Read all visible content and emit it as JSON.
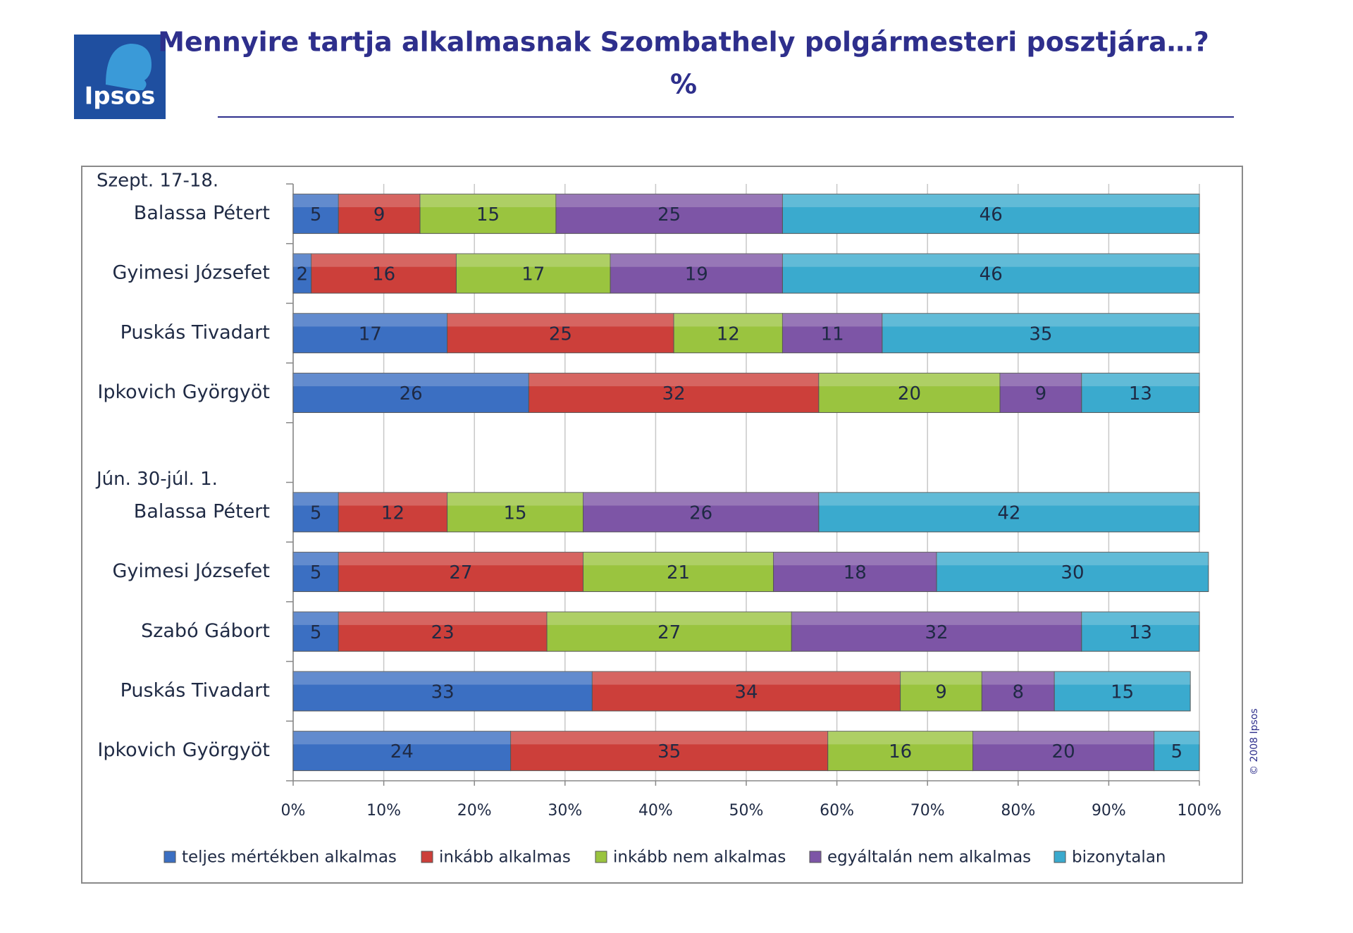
{
  "logo": "Ipsos",
  "copyright": "© 2008 Ipsos",
  "chart_data": {
    "type": "stacked_barh",
    "title": "Mennyire tartja alkalmasnak Szombathely polgármesteri posztjára…?",
    "subtitle": "%",
    "group_labels": [
      "Szept. 17-18.",
      "Jún. 30-júl. 1."
    ],
    "categories": [
      "Balassa Pétert",
      "Gyimesi Józsefet",
      "Puskás Tivadart",
      "Ipkovich Györgyöt",
      null,
      "Balassa Pétert",
      "Gyimesi Józsefet",
      "Szabó Gábort",
      "Puskás Tivadart",
      "Ipkovich Györgyöt"
    ],
    "series": [
      {
        "name": "teljes mértékben alkalmas",
        "color": "#3b6fc2",
        "values": [
          5,
          2,
          17,
          26,
          null,
          5,
          5,
          5,
          33,
          24
        ]
      },
      {
        "name": "inkább alkalmas",
        "color": "#cc3f3a",
        "values": [
          9,
          16,
          25,
          32,
          null,
          12,
          27,
          23,
          34,
          35
        ]
      },
      {
        "name": "inkább nem alkalmas",
        "color": "#9ac43f",
        "values": [
          15,
          17,
          12,
          20,
          null,
          15,
          21,
          27,
          9,
          16
        ]
      },
      {
        "name": "egyáltalán nem alkalmas",
        "color": "#7d55a6",
        "values": [
          25,
          19,
          11,
          9,
          null,
          26,
          18,
          32,
          8,
          20
        ]
      },
      {
        "name": "bizonytalan",
        "color": "#3aaace",
        "values": [
          46,
          46,
          35,
          13,
          null,
          42,
          30,
          13,
          15,
          5
        ]
      }
    ],
    "xlim": [
      0,
      100
    ],
    "xticks": [
      {
        "value": 0,
        "label": "0%"
      },
      {
        "value": 10,
        "label": "10%"
      },
      {
        "value": 20,
        "label": "20%"
      },
      {
        "value": 30,
        "label": "30%"
      },
      {
        "value": 40,
        "label": "40%"
      },
      {
        "value": 50,
        "label": "50%"
      },
      {
        "value": 60,
        "label": "60%"
      },
      {
        "value": 70,
        "label": "70%"
      },
      {
        "value": 80,
        "label": "80%"
      },
      {
        "value": 90,
        "label": "90%"
      },
      {
        "value": 100,
        "label": "100%"
      }
    ],
    "grid": true,
    "legend": "bottom"
  }
}
